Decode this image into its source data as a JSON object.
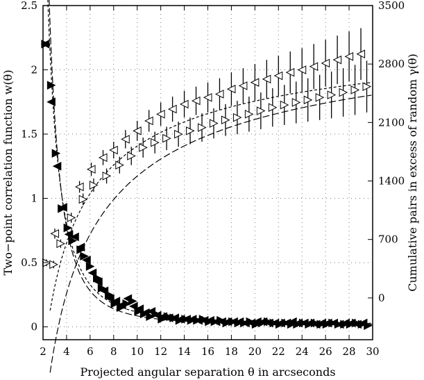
{
  "chart_data": {
    "type": "scatter",
    "title": "",
    "xlabel": "Projected angular separation θ in arcseconds",
    "ylabel_left": "Two−point correlation function  w(θ)",
    "ylabel_right": "Cumulative pairs in excess of random  γ(θ)",
    "xlim": [
      2,
      30
    ],
    "ylim_left": [
      -0.1,
      2.5
    ],
    "ylim_right": [
      -500,
      3500
    ],
    "x_ticks": [
      "2",
      "4",
      "6",
      "8",
      "10",
      "12",
      "14",
      "16",
      "18",
      "20",
      "22",
      "24",
      "26",
      "28",
      "30"
    ],
    "y_ticks_left": [
      "0",
      "0.5",
      "1",
      "1.5",
      "2",
      "2.5"
    ],
    "y_ticks_right": [
      "0",
      "700",
      "1400",
      "2100",
      "2800",
      "3500"
    ],
    "grid": true,
    "series": [
      {
        "marker": "filled-triangle-right",
        "axis": "left",
        "x": [
          2.2,
          2.7,
          3.1,
          3.6,
          4.1,
          4.5,
          5.2,
          5.5,
          6.0,
          6.6,
          7.0,
          7.6,
          8.1,
          8.6,
          9.1,
          9.6,
          10.1,
          10.6,
          11.1,
          11.6,
          12.1,
          12.6,
          13.1,
          13.6,
          14.1,
          14.6,
          15.1,
          15.6,
          16.1,
          16.6,
          17.1,
          17.6,
          18.1,
          18.6,
          19.1,
          19.6,
          20.1,
          20.6,
          21.1,
          21.6,
          22.1,
          22.6,
          23.1,
          23.6,
          24.1,
          24.6,
          25.1,
          25.6,
          26.1,
          26.6,
          27.1,
          27.6,
          28.1,
          28.6,
          29.1,
          29.6
        ],
        "values": [
          2.2,
          1.88,
          1.35,
          0.92,
          0.77,
          0.67,
          0.6,
          0.55,
          0.47,
          0.38,
          0.3,
          0.25,
          0.18,
          0.15,
          0.18,
          0.2,
          0.12,
          0.1,
          0.08,
          0.1,
          0.06,
          0.08,
          0.07,
          0.05,
          0.06,
          0.05,
          0.05,
          0.06,
          0.04,
          0.04,
          0.05,
          0.03,
          0.04,
          0.03,
          0.03,
          0.04,
          0.02,
          0.03,
          0.04,
          0.03,
          0.02,
          0.03,
          0.02,
          0.02,
          0.03,
          0.02,
          0.03,
          0.02,
          0.02,
          0.03,
          0.02,
          0.02,
          0.02,
          0.03,
          0.02,
          0.01
        ]
      },
      {
        "marker": "filled-triangle-left",
        "axis": "left",
        "x": [
          2.2,
          2.7,
          3.2,
          3.7,
          4.2,
          4.7,
          5.2,
          5.7,
          6.2,
          6.7,
          7.2,
          7.7,
          8.2,
          8.7,
          9.2,
          9.7,
          10.2,
          10.7,
          11.2,
          11.7,
          12.2,
          12.7,
          13.2,
          13.7,
          14.2,
          14.7,
          15.2,
          15.7,
          16.2,
          16.7,
          17.2,
          17.7,
          18.2,
          18.7,
          19.2,
          19.7,
          20.2,
          20.7,
          21.2,
          21.7,
          22.2,
          22.7,
          23.2,
          23.7,
          24.2,
          24.7,
          25.2,
          25.7,
          26.2,
          26.7,
          27.2,
          27.7,
          28.2,
          28.7,
          29.2
        ],
        "values": [
          2.2,
          1.75,
          1.25,
          0.93,
          0.72,
          0.7,
          0.62,
          0.52,
          0.42,
          0.35,
          0.28,
          0.22,
          0.2,
          0.17,
          0.22,
          0.16,
          0.14,
          0.11,
          0.12,
          0.09,
          0.08,
          0.07,
          0.07,
          0.06,
          0.06,
          0.06,
          0.05,
          0.05,
          0.05,
          0.04,
          0.04,
          0.04,
          0.04,
          0.04,
          0.03,
          0.03,
          0.04,
          0.04,
          0.03,
          0.03,
          0.03,
          0.03,
          0.04,
          0.03,
          0.03,
          0.03,
          0.02,
          0.03,
          0.03,
          0.03,
          0.02,
          0.03,
          0.03,
          0.02,
          0.03
        ]
      },
      {
        "marker": "open-triangle-left",
        "axis": "right",
        "x": [
          3.0,
          5.1,
          6.1,
          7.1,
          8.0,
          9.0,
          10.0,
          11.0,
          12.0,
          13.0,
          14.0,
          15.0,
          16.0,
          17.0,
          18.0,
          19.0,
          20.0,
          21.0,
          22.0,
          23.0,
          24.0,
          25.0,
          26.0,
          27.0,
          28.0,
          29.0
        ],
        "values": [
          770,
          1330,
          1540,
          1680,
          1770,
          1900,
          2000,
          2120,
          2200,
          2260,
          2320,
          2360,
          2400,
          2440,
          2500,
          2540,
          2580,
          2620,
          2660,
          2700,
          2730,
          2770,
          2810,
          2850,
          2890,
          2920
        ],
        "err": [
          60,
          70,
          80,
          90,
          100,
          110,
          120,
          130,
          140,
          150,
          160,
          170,
          180,
          190,
          200,
          210,
          220,
          230,
          240,
          250,
          260,
          270,
          280,
          290,
          300,
          310
        ]
      },
      {
        "marker": "open-triangle-right",
        "axis": "right",
        "x": [
          2.3,
          2.9,
          3.5,
          4.4,
          5.4,
          6.3,
          7.4,
          8.5,
          9.5,
          10.5,
          11.5,
          12.5,
          13.5,
          14.5,
          15.5,
          16.5,
          17.5,
          18.5,
          19.5,
          20.5,
          21.5,
          22.5,
          23.5,
          24.5,
          25.5,
          26.5,
          27.5,
          28.5,
          29.5
        ],
        "values": [
          420,
          400,
          650,
          960,
          1180,
          1350,
          1460,
          1590,
          1700,
          1800,
          1860,
          1910,
          1960,
          2000,
          2040,
          2090,
          2130,
          2160,
          2200,
          2240,
          2280,
          2310,
          2340,
          2370,
          2400,
          2430,
          2460,
          2490,
          2530
        ],
        "err": [
          40,
          45,
          50,
          60,
          70,
          80,
          90,
          100,
          110,
          120,
          130,
          140,
          150,
          160,
          170,
          180,
          190,
          200,
          210,
          220,
          230,
          240,
          250,
          260,
          270,
          280,
          290,
          300,
          310
        ]
      }
    ],
    "fit_curves": [
      {
        "style": "long-dash",
        "axis": "left",
        "description": ""
      },
      {
        "style": "short-dash",
        "axis": "left",
        "description": ""
      },
      {
        "style": "long-dash",
        "axis": "right",
        "description": ""
      },
      {
        "style": "short-dash",
        "axis": "right",
        "description": ""
      }
    ]
  }
}
